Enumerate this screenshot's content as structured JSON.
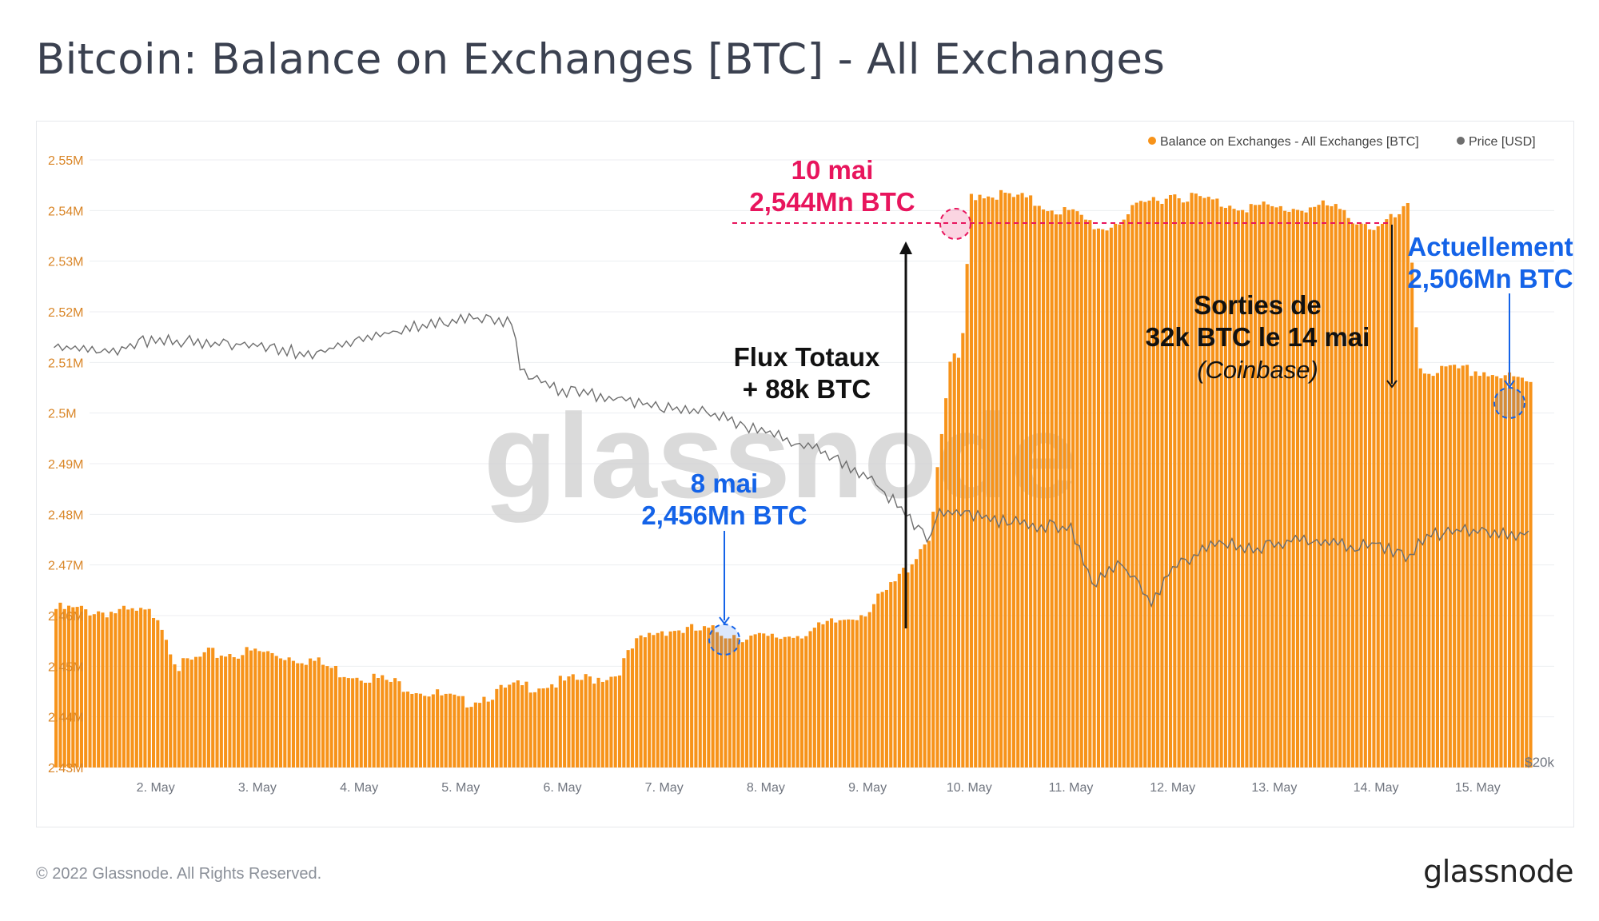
{
  "title": "Bitcoin: Balance on Exchanges [BTC] - All Exchanges",
  "footer": {
    "copyright": "© 2022 Glassnode. All Rights Reserved.",
    "logo": "glassnode"
  },
  "watermark": "glassnode",
  "legend": {
    "balance_label": "Balance on Exchanges - All Exchanges [BTC]",
    "price_label": "Price [USD]",
    "placement": "top-right"
  },
  "colors": {
    "balance": "#f7931a",
    "price": "#6e6e6e",
    "pink": "#e8155d",
    "blue": "#1463e8",
    "black": "#111111",
    "tick": "#d98526",
    "xtick": "#70757f"
  },
  "annotations": {
    "peak_date": "10 mai",
    "peak_value": "2,544Mn BTC",
    "low_date": "8 mai",
    "low_value": "2,456Mn BTC",
    "flux_line1": "Flux Totaux",
    "flux_line2": "+ 88k BTC",
    "sorties_line1": "Sorties de",
    "sorties_line2": "32k BTC le 14 mai",
    "sorties_line3": "(Coinbase)",
    "current_label": "Actuellement",
    "current_value": "2,506Mn BTC"
  },
  "chart_data": {
    "type": "bar",
    "x_domain": [
      "2022-05-01T17:00",
      "2022-05-15T13:00"
    ],
    "x_ticks": [
      "2. May",
      "3. May",
      "4. May",
      "5. May",
      "6. May",
      "7. May",
      "8. May",
      "9. May",
      "10. May",
      "11. May",
      "12. May",
      "13. May",
      "14. May",
      "15. May"
    ],
    "y_ticks": [
      "2.43M",
      "2.44M",
      "2.45M",
      "2.46M",
      "2.47M",
      "2.48M",
      "2.49M",
      "2.5M",
      "2.51M",
      "2.52M",
      "2.53M",
      "2.54M",
      "2.55M"
    ],
    "ylim": [
      2430000,
      2550000
    ],
    "right_axis_label": "$20k",
    "grid": true,
    "series": [
      {
        "name": "Balance on Exchanges - All Exchanges [BTC]",
        "kind": "bar",
        "x": [
          1.0,
          1.5,
          2.0,
          2.2,
          2.5,
          3.0,
          3.5,
          3.8,
          4.0,
          4.5,
          5.0,
          5.5,
          6.0,
          6.5,
          6.7,
          6.9,
          7.0,
          7.5,
          8.0,
          8.5,
          9.0,
          9.2,
          9.4,
          9.6,
          9.8,
          9.9,
          10.0,
          10.2,
          10.5,
          11.0,
          11.3,
          11.8,
          12.0,
          12.5,
          13.0,
          13.5,
          14.0,
          14.3,
          14.4,
          14.5,
          15.0,
          15.5
        ],
        "values": [
          2462000,
          2461500,
          2461000,
          2450500,
          2453000,
          2453500,
          2452000,
          2449500,
          2449000,
          2446500,
          2443500,
          2446500,
          2447500,
          2449000,
          2455000,
          2457500,
          2458000,
          2457500,
          2456000,
          2458000,
          2462000,
          2466000,
          2471000,
          2477000,
          2512000,
          2510000,
          2544000,
          2544000,
          2543000,
          2540000,
          2537000,
          2543000,
          2544000,
          2542000,
          2541000,
          2541500,
          2537000,
          2541000,
          2510000,
          2509000,
          2509000,
          2506500
        ]
      },
      {
        "name": "Price [USD]",
        "kind": "line",
        "x": [
          1.0,
          1.5,
          2.0,
          3.0,
          3.5,
          4.0,
          4.5,
          4.8,
          5.0,
          5.5,
          5.6,
          6.0,
          6.5,
          7.0,
          7.5,
          8.0,
          8.5,
          9.0,
          9.3,
          9.6,
          9.7,
          10.0,
          10.3,
          10.7,
          11.0,
          11.2,
          11.5,
          11.8,
          12.0,
          12.2,
          12.5,
          12.8,
          13.0,
          13.3,
          13.5,
          13.8,
          14.0,
          14.3,
          14.5,
          14.8,
          15.0,
          15.5
        ],
        "values": [
          38500,
          38300,
          38900,
          38600,
          38200,
          38800,
          39400,
          39600,
          39900,
          39600,
          37300,
          36500,
          36200,
          35800,
          35400,
          34600,
          33800,
          32600,
          31200,
          29500,
          31000,
          30800,
          30500,
          30300,
          30200,
          27600,
          28500,
          26700,
          28400,
          28900,
          29600,
          29200,
          29500,
          29600,
          29500,
          29300,
          29500,
          28800,
          29800,
          30100,
          30000,
          29900
        ]
      }
    ]
  }
}
